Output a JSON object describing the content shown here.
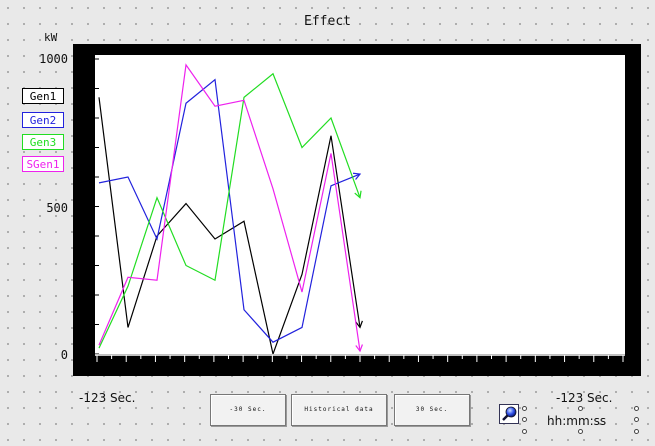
{
  "title": "Effect",
  "unit": "kW",
  "y_labels": [
    "1000",
    "500",
    "0"
  ],
  "legend": [
    {
      "label": "Gen1",
      "color": "#000000"
    },
    {
      "label": "Gen2",
      "color": "#2222dd"
    },
    {
      "label": "Gen3",
      "color": "#22dd22"
    },
    {
      "label": "SGen1",
      "color": "#ee22ee"
    }
  ],
  "time_left": "-123 Sec.",
  "time_right": "-123 Sec.",
  "time_format": "hh:mm:ss",
  "buttons": {
    "back": "-30 Sec.",
    "historical": "Historical data",
    "forward": "30 Sec."
  },
  "zoom_icon": "magnifier-icon",
  "chart_data": {
    "type": "line",
    "ylim": [
      0,
      1000
    ],
    "ylabel": "kW",
    "x": [
      0,
      1,
      2,
      3,
      4,
      5,
      6,
      7,
      8,
      9
    ],
    "series": [
      {
        "name": "Gen1",
        "color": "#000000",
        "values": [
          870,
          90,
          400,
          510,
          390,
          450,
          0,
          270,
          740,
          90
        ]
      },
      {
        "name": "Gen2",
        "color": "#2222dd",
        "values": [
          580,
          600,
          390,
          850,
          930,
          150,
          40,
          90,
          570,
          610
        ]
      },
      {
        "name": "Gen3",
        "color": "#22dd22",
        "values": [
          20,
          230,
          530,
          300,
          250,
          870,
          950,
          700,
          800,
          530
        ]
      },
      {
        "name": "SGen1",
        "color": "#ee22ee",
        "values": [
          30,
          260,
          250,
          980,
          840,
          860,
          560,
          210,
          680,
          10
        ]
      }
    ]
  }
}
